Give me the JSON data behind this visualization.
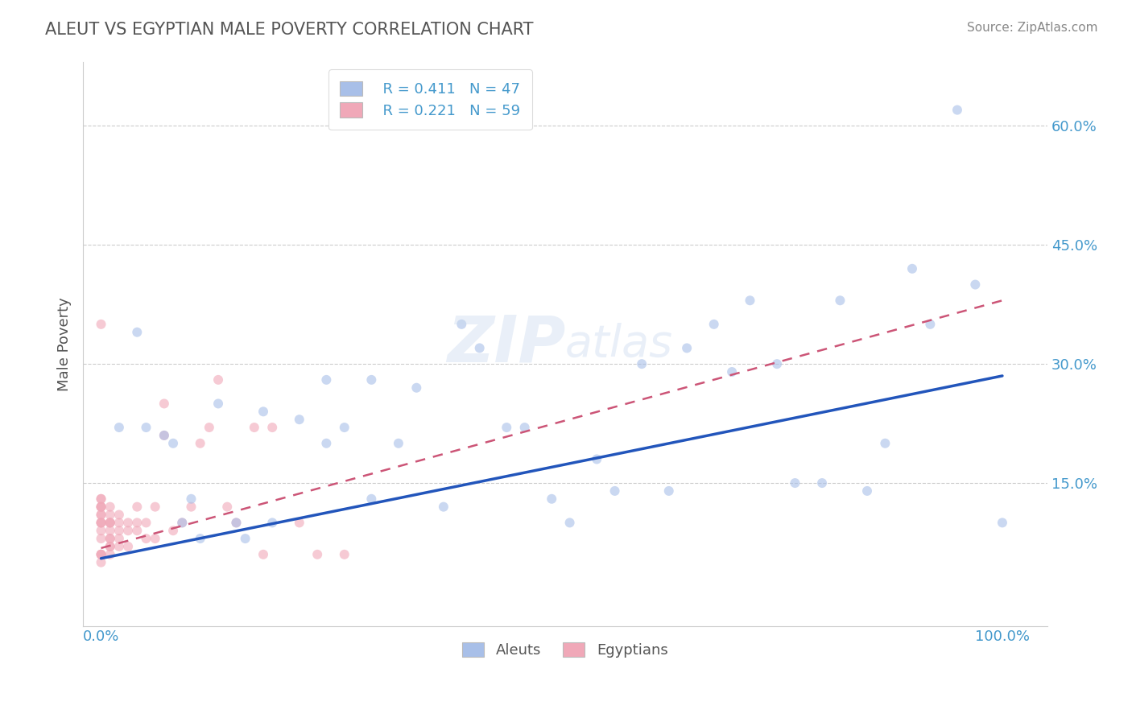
{
  "title": "ALEUT VS EGYPTIAN MALE POVERTY CORRELATION CHART",
  "source": "Source: ZipAtlas.com",
  "ylabel": "Male Poverty",
  "xlim": [
    -0.02,
    1.05
  ],
  "ylim": [
    -0.03,
    0.68
  ],
  "legend_r_aleut": "R = 0.411",
  "legend_n_aleut": "N = 47",
  "legend_r_egypt": "R = 0.221",
  "legend_n_egypt": "N = 59",
  "aleut_color": "#a8bfe8",
  "egypt_color": "#f0a8b8",
  "aleut_line_color": "#2255bb",
  "egypt_line_color": "#cc5577",
  "aleut_x": [
    0.02,
    0.04,
    0.05,
    0.07,
    0.08,
    0.09,
    0.1,
    0.11,
    0.13,
    0.15,
    0.16,
    0.18,
    0.19,
    0.22,
    0.25,
    0.27,
    0.3,
    0.33,
    0.35,
    0.38,
    0.4,
    0.42,
    0.45,
    0.47,
    0.5,
    0.52,
    0.55,
    0.57,
    0.6,
    0.63,
    0.65,
    0.68,
    0.7,
    0.72,
    0.75,
    0.77,
    0.8,
    0.82,
    0.85,
    0.87,
    0.9,
    0.92,
    0.95,
    0.97,
    1.0,
    0.25,
    0.3
  ],
  "aleut_y": [
    0.22,
    0.34,
    0.22,
    0.21,
    0.2,
    0.1,
    0.13,
    0.08,
    0.25,
    0.1,
    0.08,
    0.24,
    0.1,
    0.23,
    0.2,
    0.22,
    0.13,
    0.2,
    0.27,
    0.12,
    0.35,
    0.32,
    0.22,
    0.22,
    0.13,
    0.1,
    0.18,
    0.14,
    0.3,
    0.14,
    0.32,
    0.35,
    0.29,
    0.38,
    0.3,
    0.15,
    0.15,
    0.38,
    0.14,
    0.2,
    0.42,
    0.35,
    0.62,
    0.4,
    0.1,
    0.28,
    0.28
  ],
  "egypt_x": [
    0.0,
    0.0,
    0.0,
    0.0,
    0.0,
    0.0,
    0.0,
    0.0,
    0.0,
    0.0,
    0.0,
    0.0,
    0.0,
    0.0,
    0.0,
    0.0,
    0.0,
    0.01,
    0.01,
    0.01,
    0.01,
    0.01,
    0.01,
    0.01,
    0.01,
    0.01,
    0.01,
    0.01,
    0.02,
    0.02,
    0.02,
    0.02,
    0.02,
    0.03,
    0.03,
    0.03,
    0.04,
    0.04,
    0.04,
    0.05,
    0.05,
    0.06,
    0.06,
    0.07,
    0.07,
    0.08,
    0.09,
    0.1,
    0.11,
    0.12,
    0.13,
    0.14,
    0.15,
    0.17,
    0.18,
    0.19,
    0.22,
    0.24,
    0.27
  ],
  "egypt_y": [
    0.06,
    0.06,
    0.05,
    0.08,
    0.09,
    0.1,
    0.1,
    0.1,
    0.11,
    0.11,
    0.12,
    0.12,
    0.12,
    0.13,
    0.13,
    0.35,
    0.06,
    0.06,
    0.07,
    0.07,
    0.08,
    0.08,
    0.09,
    0.1,
    0.1,
    0.1,
    0.11,
    0.12,
    0.07,
    0.08,
    0.09,
    0.1,
    0.11,
    0.07,
    0.09,
    0.1,
    0.09,
    0.1,
    0.12,
    0.08,
    0.1,
    0.08,
    0.12,
    0.21,
    0.25,
    0.09,
    0.1,
    0.12,
    0.2,
    0.22,
    0.28,
    0.12,
    0.1,
    0.22,
    0.06,
    0.22,
    0.1,
    0.06,
    0.06
  ],
  "aleut_trendline_x": [
    0.0,
    1.0
  ],
  "aleut_trendline_y": [
    0.055,
    0.285
  ],
  "egypt_trendline_x": [
    0.0,
    1.0
  ],
  "egypt_trendline_y": [
    0.068,
    0.38
  ],
  "background_color": "#ffffff",
  "grid_color": "#cccccc",
  "title_color": "#555555",
  "axis_color": "#4499cc",
  "scatter_alpha": 0.6,
  "scatter_size": 75
}
